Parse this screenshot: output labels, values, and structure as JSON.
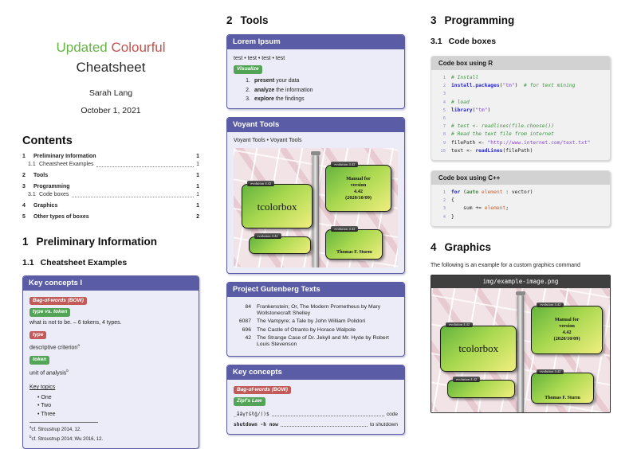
{
  "header": {
    "title_word1": "Updated",
    "title_word2": "Colourful",
    "title_line2": "Cheatsheet",
    "author": "Sarah Lang",
    "date": "October 1, 2021"
  },
  "colors": {
    "accent_purple": "#5a5da6",
    "badge_red": "#c15a58",
    "badge_green": "#53a457",
    "title_green": "#67b345",
    "title_red": "#c4534e"
  },
  "contents": {
    "heading": "Contents",
    "entries": [
      {
        "num": "1",
        "label": "Preliminary Information",
        "page": "1"
      },
      {
        "num": "1.1",
        "label": "Cheatsheet Examples",
        "page": "1"
      },
      {
        "num": "2",
        "label": "Tools",
        "page": "1"
      },
      {
        "num": "3",
        "label": "Programming",
        "page": "1"
      },
      {
        "num": "3.1",
        "label": "Code boxes",
        "page": "1"
      },
      {
        "num": "4",
        "label": "Graphics",
        "page": "1"
      },
      {
        "num": "5",
        "label": "Other types of boxes",
        "page": "2"
      }
    ]
  },
  "section1": {
    "num": "1",
    "title": "Preliminary Information"
  },
  "section11": {
    "num": "1.1",
    "title": "Cheatsheet Examples"
  },
  "key_concepts1": {
    "title": "Key concepts I",
    "badge_bow": "Bag-of-words (BOW)",
    "badge_type_token": "type vs. token",
    "type_token_text": "what is not to be. – 6 tokens, 4 types.",
    "badge_type": "type",
    "type_text": "descriptive criterion",
    "type_fn_mark": "a",
    "badge_token": "token",
    "token_text": "unit of analysis",
    "token_fn_mark": "b",
    "key_topics_label": "Key topics",
    "topics": [
      "One",
      "Two",
      "Three"
    ],
    "footnotes": [
      {
        "mark": "a",
        "text": "cf. Stroustrup 2014, 12."
      },
      {
        "mark": "b",
        "text": "cf. Stroustrup 2014; Wu 2016, 12."
      }
    ]
  },
  "section2": {
    "num": "2",
    "title": "Tools"
  },
  "lorem_box": {
    "title": "Lorem Ipsum",
    "test_line": "test • test • test • test",
    "badge": "Visualize",
    "items": [
      {
        "n": "1.",
        "b": "present",
        "rest": " your data"
      },
      {
        "n": "2.",
        "b": "analyze",
        "rest": " the information"
      },
      {
        "n": "3.",
        "b": "explore",
        "rest": " the findings"
      }
    ]
  },
  "voyant_box": {
    "title": "Voyant Tools",
    "links_line": "Voyant Tools • Voyant Tools"
  },
  "tcb": {
    "strips": [
      "evolution 4.42",
      "evolution 4.42",
      "evolution 4.42",
      "evolution 4.42"
    ],
    "main_label": "tcolorbox",
    "manual_lines": [
      "Manual for",
      "version",
      "4.42",
      "(2020/10/09)"
    ],
    "author": "Thomas F. Sturm"
  },
  "gutenberg_box": {
    "title": "Project Gutenberg Texts",
    "rows": [
      {
        "id": "84",
        "title": "Frankenstein; Or, The Modern Prometheus by Mary Wollstonecraft Shelley"
      },
      {
        "id": "6087",
        "title": "The Vampyre; a Tale by John William Polidori"
      },
      {
        "id": "696",
        "title": "The Castle of Otranto by Horace Walpole"
      },
      {
        "id": "42",
        "title": "The Strange Case of Dr. Jekyll and Mr. Hyde by Robert Louis Stevenson"
      }
    ]
  },
  "key_concepts2": {
    "title": "Key concepts",
    "badge_bow": "Bag-of-words (BOW)",
    "badge_zipf": "Zipf's Law",
    "line1_left": "_åâγ†ŝłĝ/()$",
    "line1_right": "code",
    "line2_left": "shutdown -h now",
    "line2_right": "to shutdown"
  },
  "section3": {
    "num": "3",
    "title": "Programming"
  },
  "section31": {
    "num": "3.1",
    "title": "Code boxes"
  },
  "r_box": {
    "title": "Code box using R",
    "lines": [
      {
        "n": "1",
        "tokens": [
          {
            "c": "c-com",
            "t": "# Install"
          }
        ]
      },
      {
        "n": "2",
        "tokens": [
          {
            "c": "c-fnc",
            "t": "install.packages"
          },
          {
            "t": "("
          },
          {
            "c": "c-str",
            "t": "\"tm\""
          },
          {
            "t": ")  "
          },
          {
            "c": "c-com",
            "t": "# for text mining"
          }
        ]
      },
      {
        "n": "3",
        "tokens": []
      },
      {
        "n": "4",
        "tokens": [
          {
            "c": "c-com",
            "t": "# load"
          }
        ]
      },
      {
        "n": "5",
        "tokens": [
          {
            "c": "c-fnc",
            "t": "library"
          },
          {
            "t": "("
          },
          {
            "c": "c-str",
            "t": "\"tm\""
          },
          {
            "t": ")"
          }
        ]
      },
      {
        "n": "6",
        "tokens": []
      },
      {
        "n": "7",
        "tokens": [
          {
            "c": "c-com",
            "t": "# test <- readlines(file.choose())"
          }
        ]
      },
      {
        "n": "8",
        "tokens": [
          {
            "c": "c-com",
            "t": "# Read the text file from internet"
          }
        ]
      },
      {
        "n": "9",
        "tokens": [
          {
            "t": "filePath <- "
          },
          {
            "c": "c-str",
            "t": "\"http://www.internet.com/text.txt\""
          }
        ]
      },
      {
        "n": "10",
        "tokens": [
          {
            "t": "text <- "
          },
          {
            "c": "c-fnc",
            "t": "readLines"
          },
          {
            "t": "(filePath)"
          }
        ]
      }
    ]
  },
  "cpp_box": {
    "title": "Code box using C++",
    "lines": [
      {
        "n": "1",
        "tokens": [
          {
            "c": "c-kw",
            "t": "for"
          },
          {
            "t": " ("
          },
          {
            "c": "c-typ",
            "t": "auto"
          },
          {
            "c": "c-var",
            "t": " element"
          },
          {
            "t": " : vector)"
          }
        ]
      },
      {
        "n": "2",
        "tokens": [
          {
            "t": "{"
          }
        ]
      },
      {
        "n": "3",
        "tokens": [
          {
            "t": "    sum += "
          },
          {
            "c": "c-var",
            "t": "element"
          },
          {
            "t": ";"
          }
        ]
      },
      {
        "n": "4",
        "tokens": [
          {
            "t": "}"
          }
        ]
      }
    ]
  },
  "section4": {
    "num": "4",
    "title": "Graphics"
  },
  "graphics_caption": "The following is an example for a custom graphics command",
  "image_box": {
    "filename": "img/example-image.png"
  }
}
